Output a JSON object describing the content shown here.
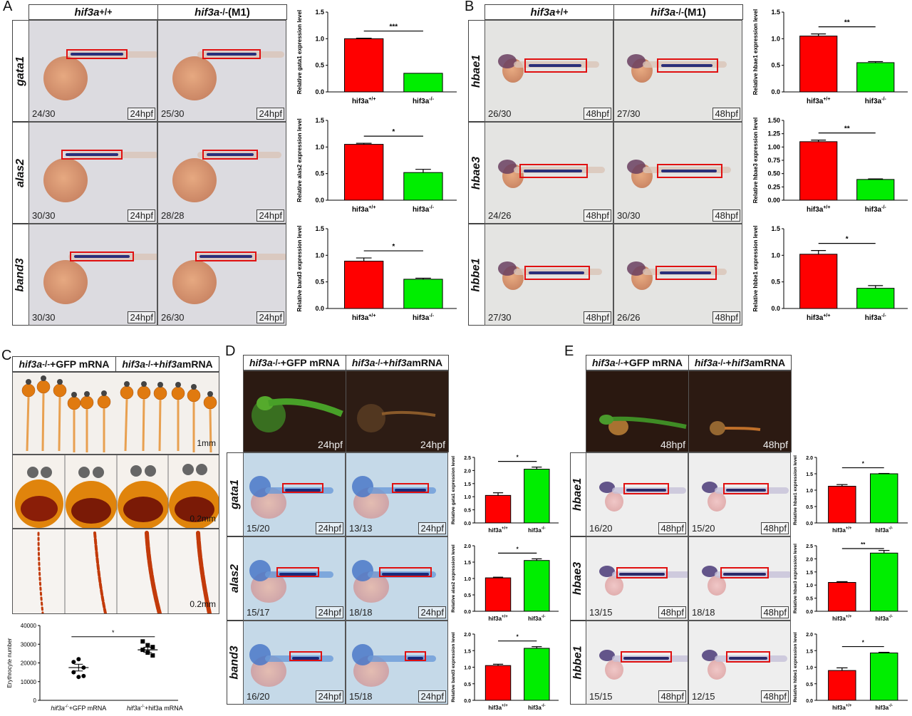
{
  "panels": {
    "A": {
      "letter": "A",
      "hdr_wt": "hif3a",
      "hdr_wt_sup": "+/+",
      "hdr_ko": "hif3a",
      "hdr_ko_sup": "-/-",
      "hdr_ko_tail": "(M1)",
      "rows": [
        {
          "gene": "gata1",
          "wt_count": "24/30",
          "ko_count": "25/30",
          "age": "24hpf"
        },
        {
          "gene": "alas2",
          "wt_count": "30/30",
          "ko_count": "28/28",
          "age": "24hpf"
        },
        {
          "gene": "band3",
          "wt_count": "30/30",
          "ko_count": "26/30",
          "age": "24hpf"
        }
      ]
    },
    "B": {
      "letter": "B",
      "hdr_wt": "hif3a",
      "hdr_wt_sup": "+/+",
      "hdr_ko": "hif3a",
      "hdr_ko_sup": "-/-",
      "hdr_ko_tail": "(M1)",
      "rows": [
        {
          "gene": "hbae1",
          "wt_count": "26/30",
          "ko_count": "27/30",
          "age": "48hpf"
        },
        {
          "gene": "hbae3",
          "wt_count": "24/26",
          "ko_count": "30/30",
          "age": "48hpf"
        },
        {
          "gene": "hbbe1",
          "wt_count": "27/30",
          "ko_count": "26/26",
          "age": "48hpf"
        }
      ]
    },
    "C": {
      "letter": "C",
      "hdr_gfp": "hif3a",
      "hdr_gfp_sup": "-/-",
      "hdr_gfp_tail": "+GFP mRNA",
      "hdr_rescue": "hif3a",
      "hdr_rescue_sup": "-/-",
      "hdr_rescue_mid": "+",
      "hdr_rescue_it": "hif3a",
      "hdr_rescue_tail": " mRNA",
      "scale1": "1mm",
      "scale2": "0.2mm",
      "scale3": "0.2mm"
    },
    "D": {
      "letter": "D",
      "hdr_gfp": "hif3a",
      "hdr_gfp_sup": "-/-",
      "hdr_gfp_tail": "+GFP mRNA",
      "hdr_rescue": "hif3a",
      "hdr_rescue_sup": "-/-",
      "hdr_rescue_mid": "+",
      "hdr_rescue_it": "hif3a",
      "hdr_rescue_tail": " mRNA",
      "fluor_age": "24hpf",
      "rows": [
        {
          "gene": "gata1",
          "wt_count": "15/20",
          "ko_count": "13/13",
          "age": "24hpf"
        },
        {
          "gene": "alas2",
          "wt_count": "15/17",
          "ko_count": "18/18",
          "age": "24hpf"
        },
        {
          "gene": "band3",
          "wt_count": "16/20",
          "ko_count": "15/18",
          "age": "24hpf"
        }
      ]
    },
    "E": {
      "letter": "E",
      "hdr_gfp": "hif3a",
      "hdr_gfp_sup": "-/-",
      "hdr_gfp_tail": "+GFP mRNA",
      "hdr_rescue": "hif3a",
      "hdr_rescue_sup": "-/-",
      "hdr_rescue_mid": "+",
      "hdr_rescue_it": "hif3a",
      "hdr_rescue_tail": " mRNA",
      "fluor_age": "48hpf",
      "rows": [
        {
          "gene": "hbae1",
          "wt_count": "16/20",
          "ko_count": "15/20",
          "age": "48hpf"
        },
        {
          "gene": "hbae3",
          "wt_count": "13/15",
          "ko_count": "18/18",
          "age": "48hpf"
        },
        {
          "gene": "hbbe1",
          "wt_count": "15/15",
          "ko_count": "12/15",
          "age": "48hpf"
        }
      ]
    }
  },
  "colors": {
    "wt_bar": "#ff0000",
    "ko_bar": "#00ee00",
    "box": "#e01010"
  },
  "chart_data": [
    {
      "id": "A1",
      "type": "bar",
      "categories": [
        "hif3a+/+",
        "hif3a-/-"
      ],
      "values": [
        1.0,
        0.35
      ],
      "errors": [
        0.01,
        0.0
      ],
      "ylabel": "Relative gata1 expression level",
      "ylim": [
        0,
        1.5
      ],
      "yticks": [
        "0.0",
        "0.5",
        "1.0",
        "1.5"
      ],
      "sig": "***"
    },
    {
      "id": "A2",
      "type": "bar",
      "categories": [
        "hif3a+/+",
        "hif3a-/-"
      ],
      "values": [
        1.05,
        0.52
      ],
      "errors": [
        0.02,
        0.06
      ],
      "ylabel": "Relative alas2 expression level",
      "ylim": [
        0,
        1.5
      ],
      "yticks": [
        "0.0",
        "0.5",
        "1.0",
        "1.5"
      ],
      "sig": "*"
    },
    {
      "id": "A3",
      "type": "bar",
      "categories": [
        "hif3a+/+",
        "hif3a-/-"
      ],
      "values": [
        0.89,
        0.55
      ],
      "errors": [
        0.06,
        0.02
      ],
      "ylabel": "Relative band3 expression level",
      "ylim": [
        0,
        1.5
      ],
      "yticks": [
        "0.0",
        "0.5",
        "1.0",
        "1.5"
      ],
      "sig": "*"
    },
    {
      "id": "B1",
      "type": "bar",
      "categories": [
        "hif3a+/+",
        "hif3a-/-"
      ],
      "values": [
        1.05,
        0.55
      ],
      "errors": [
        0.04,
        0.02
      ],
      "ylabel": "Relative hbae1 expression level",
      "ylim": [
        0,
        1.5
      ],
      "yticks": [
        "0.0",
        "0.5",
        "1.0",
        "1.5"
      ],
      "sig": "**"
    },
    {
      "id": "B2",
      "type": "bar",
      "categories": [
        "hif3a+/+",
        "hif3a-/-"
      ],
      "values": [
        1.1,
        0.39
      ],
      "errors": [
        0.03,
        0.01
      ],
      "ylabel": "Relative hbae3 expression level",
      "ylim": [
        0,
        1.5
      ],
      "yticks": [
        "0.00",
        "0.25",
        "0.50",
        "0.75",
        "1.00",
        "1.25",
        "1.50"
      ],
      "sig": "**"
    },
    {
      "id": "B3",
      "type": "bar",
      "categories": [
        "hif3a+/+",
        "hif3a-/-"
      ],
      "values": [
        1.02,
        0.38
      ],
      "errors": [
        0.07,
        0.05
      ],
      "ylabel": "Relative hbbe1 expression level",
      "ylim": [
        0,
        1.5
      ],
      "yticks": [
        "0.0",
        "0.5",
        "1.0",
        "1.5"
      ],
      "sig": "*"
    },
    {
      "id": "C",
      "type": "scatter",
      "categories": [
        "hif3a-/-+GFP mRNA",
        "hif3a-/-+hif3a mRNA"
      ],
      "points": [
        [
          20500,
          22000,
          17500,
          15000,
          12500,
          13000
        ],
        [
          31500,
          29500,
          28500,
          27000,
          25500,
          24000
        ]
      ],
      "means": [
        17500,
        27000
      ],
      "sem": [
        1800,
        1400
      ],
      "ylabel": "Erythrocyte number",
      "ylim": [
        0,
        40000
      ],
      "yticks": [
        "0",
        "10000",
        "20000",
        "30000",
        "40000"
      ],
      "sig": "*"
    },
    {
      "id": "D1",
      "type": "bar",
      "categories": [
        "hif3a+/+",
        "hif3a-/-"
      ],
      "values": [
        1.05,
        2.05
      ],
      "errors": [
        0.1,
        0.08
      ],
      "ylabel": "Relative gata1 expression level",
      "ylim": [
        0,
        2.5
      ],
      "yticks": [
        "0.0",
        "0.5",
        "1.0",
        "1.5",
        "2.0",
        "2.5"
      ],
      "sig": "*"
    },
    {
      "id": "D2",
      "type": "bar",
      "categories": [
        "hif3a+/+",
        "hif3a-/-"
      ],
      "values": [
        1.02,
        1.55
      ],
      "errors": [
        0.02,
        0.05
      ],
      "ylabel": "Relative alas2 expression level",
      "ylim": [
        0,
        2.0
      ],
      "yticks": [
        "0.0",
        "0.5",
        "1.0",
        "1.5",
        "2.0"
      ],
      "sig": "*"
    },
    {
      "id": "D3",
      "type": "bar",
      "categories": [
        "hif3a+/+",
        "hif3a-/-"
      ],
      "values": [
        1.05,
        1.57
      ],
      "errors": [
        0.04,
        0.05
      ],
      "ylabel": "Relative band3 expression level",
      "ylim": [
        0,
        2.0
      ],
      "yticks": [
        "0.0",
        "0.5",
        "1.0",
        "1.5",
        "2.0"
      ],
      "sig": "*"
    },
    {
      "id": "E1",
      "type": "bar",
      "categories": [
        "hif3a+/+",
        "hif3a-/-"
      ],
      "values": [
        1.12,
        1.5
      ],
      "errors": [
        0.05,
        0.01
      ],
      "ylabel": "Relative hbae1 expression level",
      "ylim": [
        0,
        2.0
      ],
      "yticks": [
        "0.0",
        "0.5",
        "1.0",
        "1.5",
        "2.0"
      ],
      "sig": "*"
    },
    {
      "id": "E2",
      "type": "bar",
      "categories": [
        "hif3a+/+",
        "hif3a-/-"
      ],
      "values": [
        1.1,
        2.22
      ],
      "errors": [
        0.03,
        0.1
      ],
      "ylabel": "Relative hbae3 expression level",
      "ylim": [
        0,
        2.5
      ],
      "yticks": [
        "0.0",
        "0.5",
        "1.0",
        "1.5",
        "2.0",
        "2.5"
      ],
      "sig": "**"
    },
    {
      "id": "E3",
      "type": "bar",
      "categories": [
        "hif3a+/+",
        "hif3a-/-"
      ],
      "values": [
        0.9,
        1.43
      ],
      "errors": [
        0.08,
        0.02
      ],
      "ylabel": "Relative hbbe1 expression level",
      "ylim": [
        0,
        2.0
      ],
      "yticks": [
        "0.0",
        "0.5",
        "1.0",
        "1.5",
        "2.0"
      ],
      "sig": "*"
    }
  ]
}
